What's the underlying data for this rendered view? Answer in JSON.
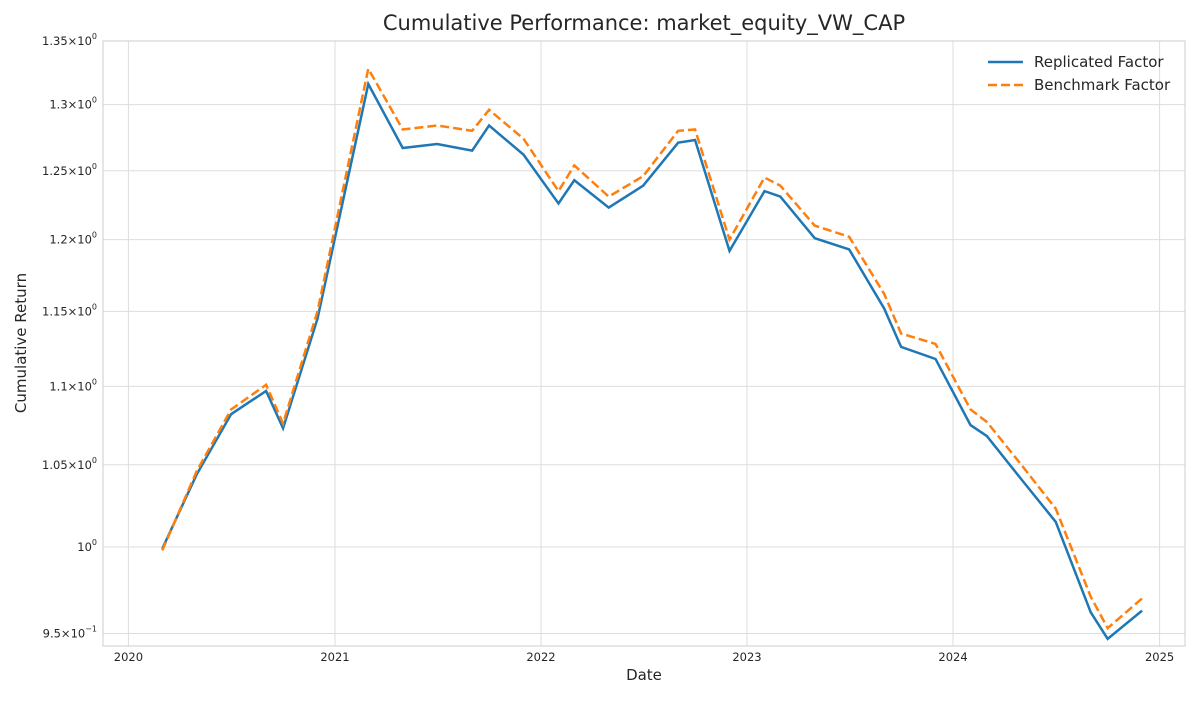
{
  "chart_data": {
    "type": "line",
    "title": "Cumulative Performance: market_equity_VW_CAP",
    "xlabel": "Date",
    "ylabel": "Cumulative Return",
    "y_scale": "log",
    "ylim": [
      0.943,
      1.35
    ],
    "xlim": [
      "2019-11-17",
      "2025-02-15"
    ],
    "grid": true,
    "legend_position": "top-right",
    "x_ticks": [
      "2020",
      "2021",
      "2022",
      "2023",
      "2024",
      "2025"
    ],
    "y_ticks": [
      {
        "mantissa": "9.5",
        "exponent": "−1",
        "value": 0.95
      },
      {
        "mantissa": "",
        "exponent": "0",
        "value": 1.0
      },
      {
        "mantissa": "1.05",
        "exponent": "0",
        "value": 1.05
      },
      {
        "mantissa": "1.1",
        "exponent": "0",
        "value": 1.1
      },
      {
        "mantissa": "1.15",
        "exponent": "0",
        "value": 1.15
      },
      {
        "mantissa": "1.2",
        "exponent": "0",
        "value": 1.2
      },
      {
        "mantissa": "1.25",
        "exponent": "0",
        "value": 1.25
      },
      {
        "mantissa": "1.3",
        "exponent": "0",
        "value": 1.3
      },
      {
        "mantissa": "1.35",
        "exponent": "0",
        "value": 1.35
      }
    ],
    "x": [
      "2020-03-01",
      "2020-05-01",
      "2020-07-01",
      "2020-09-01",
      "2020-10-01",
      "2020-12-01",
      "2021-03-01",
      "2021-05-01",
      "2021-07-01",
      "2021-09-01",
      "2021-10-01",
      "2021-12-01",
      "2022-02-01",
      "2022-03-01",
      "2022-05-01",
      "2022-07-01",
      "2022-09-01",
      "2022-10-01",
      "2022-12-01",
      "2023-02-01",
      "2023-03-01",
      "2023-05-01",
      "2023-07-01",
      "2023-09-01",
      "2023-10-01",
      "2023-12-01",
      "2024-02-01",
      "2024-03-01",
      "2024-05-01",
      "2024-07-01",
      "2024-09-01",
      "2024-10-01",
      "2024-12-01"
    ],
    "series": [
      {
        "name": "Replicated Factor",
        "color": "#1f77b4",
        "dash": "solid",
        "values": [
          0.999,
          1.044,
          1.082,
          1.097,
          1.073,
          1.145,
          1.316,
          1.267,
          1.27,
          1.265,
          1.284,
          1.262,
          1.226,
          1.243,
          1.223,
          1.239,
          1.271,
          1.273,
          1.192,
          1.235,
          1.231,
          1.201,
          1.193,
          1.152,
          1.126,
          1.118,
          1.075,
          1.068,
          1.041,
          1.015,
          0.962,
          0.947,
          0.963
        ]
      },
      {
        "name": "Benchmark Factor",
        "color": "#ff7f0e",
        "dash": "dashed",
        "values": [
          0.998,
          1.046,
          1.085,
          1.101,
          1.076,
          1.15,
          1.328,
          1.281,
          1.284,
          1.28,
          1.296,
          1.274,
          1.235,
          1.254,
          1.231,
          1.246,
          1.28,
          1.281,
          1.2,
          1.245,
          1.239,
          1.21,
          1.202,
          1.162,
          1.135,
          1.128,
          1.085,
          1.077,
          1.05,
          1.023,
          0.971,
          0.953,
          0.97
        ]
      }
    ]
  }
}
